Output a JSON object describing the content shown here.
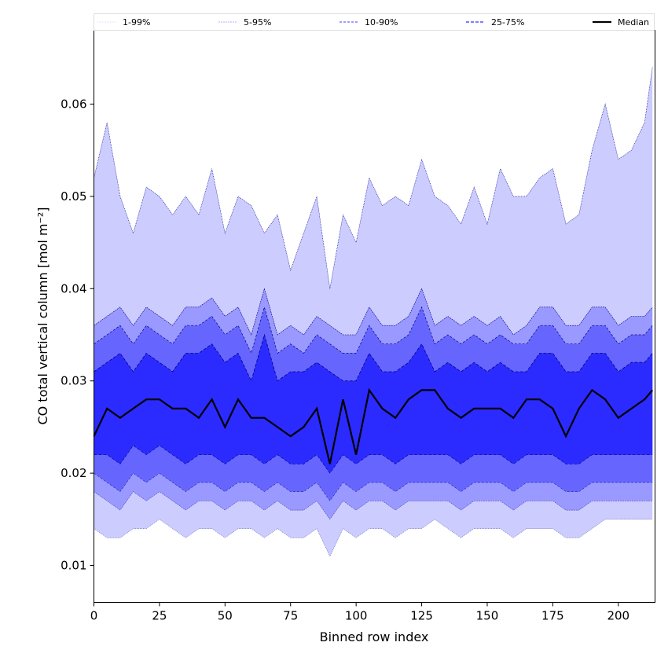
{
  "chart_data": {
    "type": "area",
    "title": "",
    "xlabel": "Binned row index",
    "ylabel": "CO total vertical column [mol m⁻²]",
    "xlim": [
      0,
      214
    ],
    "ylim": [
      0.006,
      0.068
    ],
    "xticks": [
      0,
      25,
      50,
      75,
      100,
      125,
      150,
      175,
      200
    ],
    "yticks": [
      0.01,
      0.02,
      0.03,
      0.04,
      0.05,
      0.06
    ],
    "ytick_labels": [
      "0.01",
      "0.02",
      "0.03",
      "0.04",
      "0.05",
      "0.06"
    ],
    "grid": false,
    "legend_position": "top, above plot (horizontal)",
    "legend": [
      "1-99%",
      "5-95%",
      "10-90%",
      "25-75%",
      "Median"
    ],
    "colors": {
      "band_1_99": "#ccccff",
      "band_5_95": "#9999ff",
      "band_10_90": "#6666ff",
      "band_25_75": "#2b2bff",
      "median": "#000000",
      "edge": "#00008b"
    },
    "x": [
      0,
      5,
      10,
      15,
      20,
      25,
      30,
      35,
      40,
      45,
      50,
      55,
      60,
      65,
      70,
      75,
      80,
      85,
      90,
      95,
      100,
      105,
      110,
      115,
      120,
      125,
      130,
      135,
      140,
      145,
      150,
      155,
      160,
      165,
      170,
      175,
      180,
      185,
      190,
      195,
      200,
      205,
      210,
      213
    ],
    "series": [
      {
        "name": "p1",
        "values": [
          0.014,
          0.013,
          0.013,
          0.014,
          0.014,
          0.015,
          0.014,
          0.013,
          0.014,
          0.014,
          0.013,
          0.014,
          0.014,
          0.013,
          0.014,
          0.013,
          0.013,
          0.014,
          0.011,
          0.014,
          0.013,
          0.014,
          0.014,
          0.013,
          0.014,
          0.014,
          0.015,
          0.014,
          0.013,
          0.014,
          0.014,
          0.014,
          0.013,
          0.014,
          0.014,
          0.014,
          0.013,
          0.013,
          0.014,
          0.015,
          0.015,
          0.015,
          0.015,
          0.015
        ]
      },
      {
        "name": "p5",
        "values": [
          0.018,
          0.017,
          0.016,
          0.018,
          0.017,
          0.018,
          0.017,
          0.016,
          0.017,
          0.017,
          0.016,
          0.017,
          0.017,
          0.016,
          0.017,
          0.016,
          0.016,
          0.017,
          0.015,
          0.017,
          0.016,
          0.017,
          0.017,
          0.016,
          0.017,
          0.017,
          0.017,
          0.017,
          0.016,
          0.017,
          0.017,
          0.017,
          0.016,
          0.017,
          0.017,
          0.017,
          0.016,
          0.016,
          0.017,
          0.017,
          0.017,
          0.017,
          0.017,
          0.017
        ]
      },
      {
        "name": "p10",
        "values": [
          0.02,
          0.019,
          0.018,
          0.02,
          0.019,
          0.02,
          0.019,
          0.018,
          0.019,
          0.019,
          0.018,
          0.019,
          0.019,
          0.018,
          0.019,
          0.018,
          0.018,
          0.019,
          0.017,
          0.019,
          0.018,
          0.019,
          0.019,
          0.018,
          0.019,
          0.019,
          0.019,
          0.019,
          0.018,
          0.019,
          0.019,
          0.019,
          0.018,
          0.019,
          0.019,
          0.019,
          0.018,
          0.018,
          0.019,
          0.019,
          0.019,
          0.019,
          0.019,
          0.019
        ]
      },
      {
        "name": "p25",
        "values": [
          0.022,
          0.022,
          0.021,
          0.023,
          0.022,
          0.023,
          0.022,
          0.021,
          0.022,
          0.022,
          0.021,
          0.022,
          0.022,
          0.021,
          0.022,
          0.021,
          0.021,
          0.022,
          0.02,
          0.022,
          0.021,
          0.022,
          0.022,
          0.021,
          0.022,
          0.022,
          0.022,
          0.022,
          0.021,
          0.022,
          0.022,
          0.022,
          0.021,
          0.022,
          0.022,
          0.022,
          0.021,
          0.021,
          0.022,
          0.022,
          0.022,
          0.022,
          0.022,
          0.022
        ]
      },
      {
        "name": "median",
        "values": [
          0.024,
          0.027,
          0.026,
          0.027,
          0.028,
          0.028,
          0.027,
          0.027,
          0.026,
          0.028,
          0.025,
          0.028,
          0.026,
          0.026,
          0.025,
          0.024,
          0.025,
          0.027,
          0.021,
          0.028,
          0.022,
          0.029,
          0.027,
          0.026,
          0.028,
          0.029,
          0.029,
          0.027,
          0.026,
          0.027,
          0.027,
          0.027,
          0.026,
          0.028,
          0.028,
          0.027,
          0.024,
          0.027,
          0.029,
          0.028,
          0.026,
          0.027,
          0.028,
          0.029
        ]
      },
      {
        "name": "p75",
        "values": [
          0.031,
          0.032,
          0.033,
          0.031,
          0.033,
          0.032,
          0.031,
          0.033,
          0.033,
          0.034,
          0.032,
          0.033,
          0.03,
          0.035,
          0.03,
          0.031,
          0.031,
          0.032,
          0.031,
          0.03,
          0.03,
          0.033,
          0.031,
          0.031,
          0.032,
          0.034,
          0.031,
          0.032,
          0.031,
          0.032,
          0.031,
          0.032,
          0.031,
          0.031,
          0.033,
          0.033,
          0.031,
          0.031,
          0.033,
          0.033,
          0.031,
          0.032,
          0.032,
          0.033
        ]
      },
      {
        "name": "p90",
        "values": [
          0.034,
          0.035,
          0.036,
          0.034,
          0.036,
          0.035,
          0.034,
          0.036,
          0.036,
          0.037,
          0.035,
          0.036,
          0.033,
          0.038,
          0.033,
          0.034,
          0.033,
          0.035,
          0.034,
          0.033,
          0.033,
          0.036,
          0.034,
          0.034,
          0.035,
          0.038,
          0.034,
          0.035,
          0.034,
          0.035,
          0.034,
          0.035,
          0.034,
          0.034,
          0.036,
          0.036,
          0.034,
          0.034,
          0.036,
          0.036,
          0.034,
          0.035,
          0.035,
          0.036
        ]
      },
      {
        "name": "p95",
        "values": [
          0.036,
          0.037,
          0.038,
          0.036,
          0.038,
          0.037,
          0.036,
          0.038,
          0.038,
          0.039,
          0.037,
          0.038,
          0.035,
          0.04,
          0.035,
          0.036,
          0.035,
          0.037,
          0.036,
          0.035,
          0.035,
          0.038,
          0.036,
          0.036,
          0.037,
          0.04,
          0.036,
          0.037,
          0.036,
          0.037,
          0.036,
          0.037,
          0.035,
          0.036,
          0.038,
          0.038,
          0.036,
          0.036,
          0.038,
          0.038,
          0.036,
          0.037,
          0.037,
          0.038
        ]
      },
      {
        "name": "p99",
        "values": [
          0.052,
          0.058,
          0.05,
          0.046,
          0.051,
          0.05,
          0.048,
          0.05,
          0.048,
          0.053,
          0.046,
          0.05,
          0.049,
          0.046,
          0.048,
          0.042,
          0.046,
          0.05,
          0.04,
          0.048,
          0.045,
          0.052,
          0.049,
          0.05,
          0.049,
          0.054,
          0.05,
          0.049,
          0.047,
          0.051,
          0.047,
          0.053,
          0.05,
          0.05,
          0.052,
          0.053,
          0.047,
          0.048,
          0.055,
          0.06,
          0.054,
          0.055,
          0.058,
          0.064
        ]
      }
    ]
  }
}
